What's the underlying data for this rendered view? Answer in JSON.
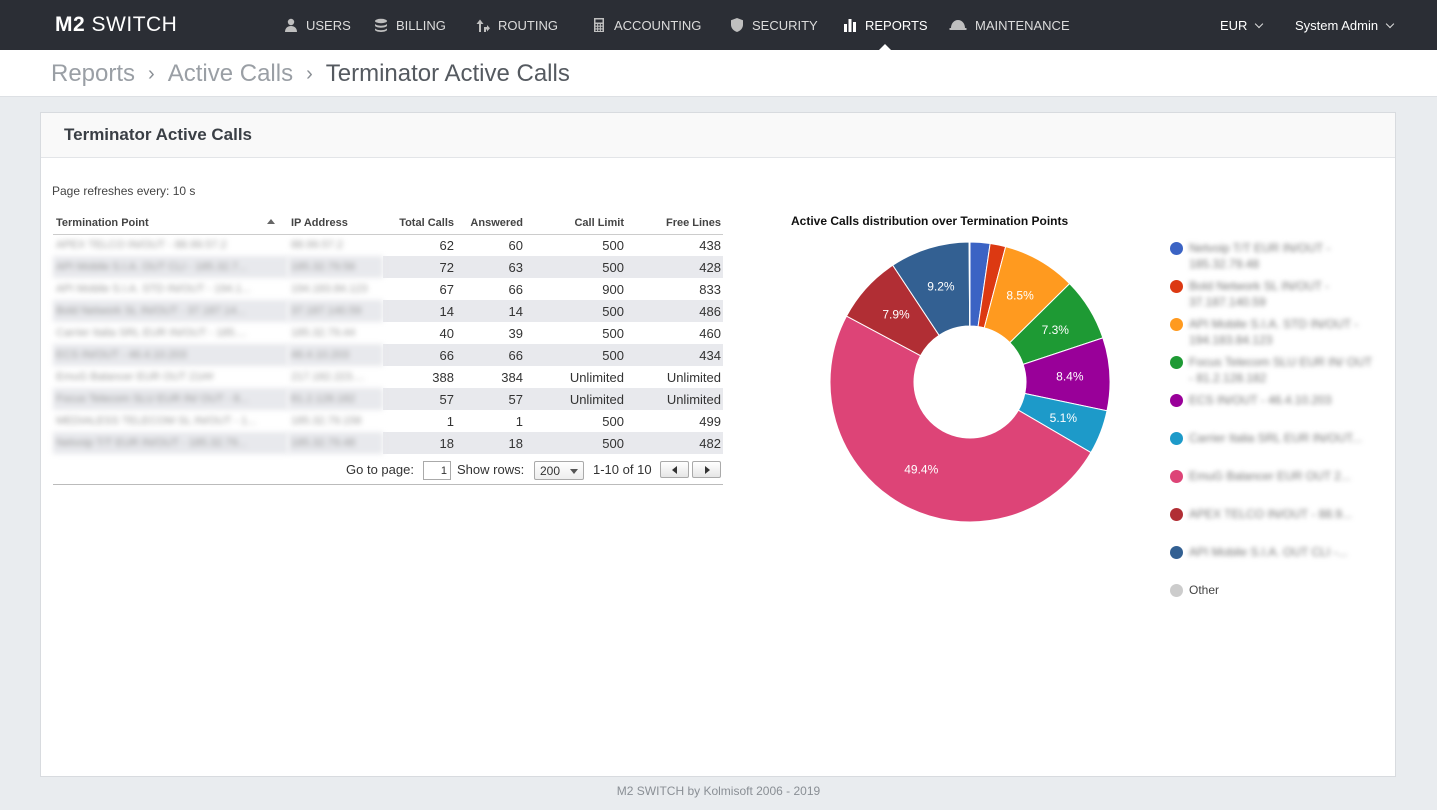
{
  "app": {
    "logo_bold": "M2",
    "logo_rest": "SWITCH"
  },
  "nav": {
    "items": [
      {
        "label": "USERS",
        "icon": "user-icon"
      },
      {
        "label": "BILLING",
        "icon": "coins-icon"
      },
      {
        "label": "ROUTING",
        "icon": "routing-arrows-icon"
      },
      {
        "label": "ACCOUNTING",
        "icon": "calculator-icon"
      },
      {
        "label": "SECURITY",
        "icon": "shield-icon"
      },
      {
        "label": "REPORTS",
        "icon": "bar-chart-icon",
        "active": true
      },
      {
        "label": "MAINTENANCE",
        "icon": "helmet-icon"
      }
    ],
    "currency": "EUR",
    "user": "System Admin"
  },
  "breadcrumb": {
    "items": [
      "Reports",
      "Active Calls",
      "Terminator Active Calls"
    ]
  },
  "panel": {
    "title": "Terminator Active Calls",
    "refresh_text": "Page refreshes every: 10 s"
  },
  "table": {
    "columns": [
      "Termination Point",
      "IP Address",
      "Total Calls",
      "Answered",
      "Call Limit",
      "Free Lines"
    ],
    "rows": [
      {
        "tp": "APEX TELCO IN/OUT - 88.99.57.2",
        "ip": "88.99.57.2",
        "total": "62",
        "answered": "60",
        "limit": "500",
        "free": "438"
      },
      {
        "tp": "API Mobile S.I.A. OUT CLI - 185.32.7...",
        "ip": "185.32.79.56",
        "total": "72",
        "answered": "63",
        "limit": "500",
        "free": "428"
      },
      {
        "tp": "API Mobile S.I.A. STD IN/OUT - 194.1...",
        "ip": "194.183.84.123",
        "total": "67",
        "answered": "66",
        "limit": "900",
        "free": "833"
      },
      {
        "tp": "Bold Network SL IN/OUT - 37.187.14...",
        "ip": "37.187.140.59",
        "total": "14",
        "answered": "14",
        "limit": "500",
        "free": "486"
      },
      {
        "tp": "Carrier Italia SRL EUR IN/OUT - 185....",
        "ip": "185.32.79.44",
        "total": "40",
        "answered": "39",
        "limit": "500",
        "free": "460"
      },
      {
        "tp": "ECS IN/OUT - 46.4.10.203",
        "ip": "46.4.10.203",
        "total": "66",
        "answered": "66",
        "limit": "500",
        "free": "434"
      },
      {
        "tp": "EmuG Balancer EUR OUT 21##",
        "ip": "217.182.223....",
        "total": "388",
        "answered": "384",
        "limit": "Unlimited",
        "free": "Unlimited"
      },
      {
        "tp": "Focus Telecom SLU EUR IN/ OUT - 8...",
        "ip": "81.2.128.182",
        "total": "57",
        "answered": "57",
        "limit": "Unlimited",
        "free": "Unlimited"
      },
      {
        "tp": "MEDIALESS TELECOM SL IN/OUT - 1...",
        "ip": "185.32.79.158",
        "total": "1",
        "answered": "1",
        "limit": "500",
        "free": "499"
      },
      {
        "tp": "Netvoip T/T EUR IN/OUT - 185.32.79...",
        "ip": "185.32.79.48",
        "total": "18",
        "answered": "18",
        "limit": "500",
        "free": "482"
      }
    ]
  },
  "pager": {
    "goto_label": "Go to page:",
    "goto_value": "1",
    "rows_label": "Show rows:",
    "rows_value": "200",
    "range": "1-10 of 10"
  },
  "chart_data": {
    "type": "pie",
    "title": "Active Calls distribution over Termination Points",
    "donut": true,
    "slices": [
      {
        "name": "Netvoip T/T EUR IN/OUT - 185.32.79.48",
        "value": 2.3,
        "label": "",
        "color": "#3b63c4"
      },
      {
        "name": "Bold Network SL IN/OUT - 37.187.140.59",
        "value": 1.8,
        "label": "",
        "color": "#dc3912"
      },
      {
        "name": "API Mobile S.I.A. STD IN/OUT - 194.183.84.123",
        "value": 8.5,
        "label": "8.5%",
        "color": "#ff9a1f"
      },
      {
        "name": "Focus Telecom SLU EUR IN/ OUT - 81.2.128.182",
        "value": 7.3,
        "label": "7.3%",
        "color": "#1e9a34"
      },
      {
        "name": "ECS IN/OUT - 46.4.10.203",
        "value": 8.4,
        "label": "8.4%",
        "color": "#990099"
      },
      {
        "name": "Carrier Italia SRL EUR IN/OUT...",
        "value": 5.1,
        "label": "5.1%",
        "color": "#1d9ac9"
      },
      {
        "name": "EmuG Balancer EUR OUT 2...",
        "value": 49.4,
        "label": "49.4%",
        "color": "#dd4477"
      },
      {
        "name": "APEX TELCO IN/OUT - 88.9...",
        "value": 7.9,
        "label": "7.9%",
        "color": "#b12e34"
      },
      {
        "name": "API Mobile S.I.A. OUT CLI -...",
        "value": 9.2,
        "label": "9.2%",
        "color": "#336092"
      },
      {
        "name": "Other",
        "value": 0.1,
        "label": "",
        "color": "#cccccc"
      }
    ]
  },
  "footer": "M2 SWITCH by Kolmisoft 2006 - 2019"
}
